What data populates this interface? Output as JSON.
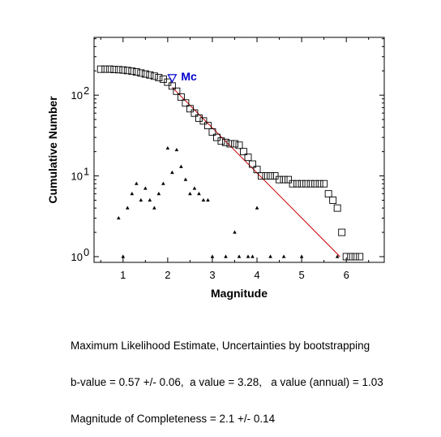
{
  "chart_data": {
    "type": "scatter",
    "xlabel": "Magnitude",
    "ylabel": "Cumulative Number",
    "xlim": [
      0.35,
      6.85
    ],
    "ylim": [
      0.85,
      520
    ],
    "yscale": "log",
    "x_ticks": [
      1,
      2,
      3,
      4,
      5,
      6
    ],
    "y_ticks": [
      {
        "value": 1,
        "base": "10",
        "exp": "0"
      },
      {
        "value": 10,
        "base": "10",
        "exp": "1"
      },
      {
        "value": 100,
        "base": "10",
        "exp": "2"
      }
    ],
    "grid": false,
    "series": [
      {
        "marker": "square",
        "color": "#000000",
        "points": [
          [
            0.5,
            210
          ],
          [
            0.6,
            210
          ],
          [
            0.7,
            210
          ],
          [
            0.8,
            208
          ],
          [
            0.9,
            207
          ],
          [
            1.0,
            205
          ],
          [
            1.1,
            202
          ],
          [
            1.2,
            198
          ],
          [
            1.3,
            194
          ],
          [
            1.4,
            188
          ],
          [
            1.5,
            183
          ],
          [
            1.6,
            178
          ],
          [
            1.7,
            172
          ],
          [
            1.8,
            165
          ],
          [
            1.9,
            158
          ],
          [
            2.0,
            145
          ],
          [
            2.1,
            130
          ],
          [
            2.2,
            112
          ],
          [
            2.3,
            95
          ],
          [
            2.4,
            80
          ],
          [
            2.5,
            68
          ],
          [
            2.6,
            60
          ],
          [
            2.7,
            52
          ],
          [
            2.8,
            48
          ],
          [
            2.9,
            42
          ],
          [
            3.0,
            35
          ],
          [
            3.1,
            30
          ],
          [
            3.2,
            27
          ],
          [
            3.3,
            26
          ],
          [
            3.4,
            25
          ],
          [
            3.5,
            25
          ],
          [
            3.6,
            24
          ],
          [
            3.7,
            20
          ],
          [
            3.8,
            17
          ],
          [
            3.9,
            14
          ],
          [
            4.0,
            12
          ],
          [
            4.1,
            10
          ],
          [
            4.2,
            10
          ],
          [
            4.3,
            10
          ],
          [
            4.4,
            10
          ],
          [
            4.5,
            9
          ],
          [
            4.6,
            9
          ],
          [
            4.7,
            9
          ],
          [
            4.8,
            8
          ],
          [
            4.9,
            8
          ],
          [
            5.0,
            8
          ],
          [
            5.1,
            8
          ],
          [
            5.2,
            8
          ],
          [
            5.3,
            8
          ],
          [
            5.4,
            8
          ],
          [
            5.5,
            8
          ],
          [
            5.6,
            6
          ],
          [
            5.7,
            5
          ],
          [
            5.8,
            4
          ],
          [
            5.9,
            2
          ],
          [
            6.0,
            1
          ],
          [
            6.1,
            1
          ],
          [
            6.2,
            1
          ],
          [
            6.3,
            1
          ]
        ]
      },
      {
        "marker": "triangle",
        "color": "#000000",
        "points": [
          [
            0.9,
            3
          ],
          [
            1.0,
            1
          ],
          [
            1.1,
            4
          ],
          [
            1.2,
            6
          ],
          [
            1.3,
            8
          ],
          [
            1.4,
            5
          ],
          [
            1.5,
            7
          ],
          [
            1.6,
            5
          ],
          [
            1.7,
            4
          ],
          [
            1.8,
            6
          ],
          [
            1.9,
            8
          ],
          [
            2.0,
            22
          ],
          [
            2.1,
            11
          ],
          [
            2.2,
            21
          ],
          [
            2.3,
            13
          ],
          [
            2.4,
            9
          ],
          [
            2.5,
            6
          ],
          [
            2.6,
            7
          ],
          [
            2.7,
            6
          ],
          [
            2.8,
            5
          ],
          [
            2.9,
            5
          ],
          [
            3.0,
            1
          ],
          [
            3.3,
            1
          ],
          [
            3.5,
            2
          ],
          [
            3.6,
            1
          ],
          [
            3.8,
            1
          ],
          [
            3.9,
            1
          ],
          [
            4.0,
            4
          ],
          [
            4.3,
            1
          ],
          [
            4.6,
            1
          ],
          [
            5.0,
            1
          ],
          [
            5.8,
            1
          ]
        ]
      }
    ],
    "fit_line": {
      "color": "#cc0000",
      "x": [
        2.1,
        5.86
      ],
      "y": [
        125,
        1
      ]
    },
    "mc_marker": {
      "x": 2.1,
      "y": 160,
      "label": "Mc",
      "color": "#0000cc"
    }
  },
  "caption": {
    "line1": "Maximum Likelihood Estimate, Uncertainties by bootstrapping",
    "line2": "b-value = 0.57 +/- 0.06,  a value = 3.28,   a value (annual) = 1.03",
    "line3": "Magnitude of Completeness = 2.1 +/- 0.14"
  }
}
